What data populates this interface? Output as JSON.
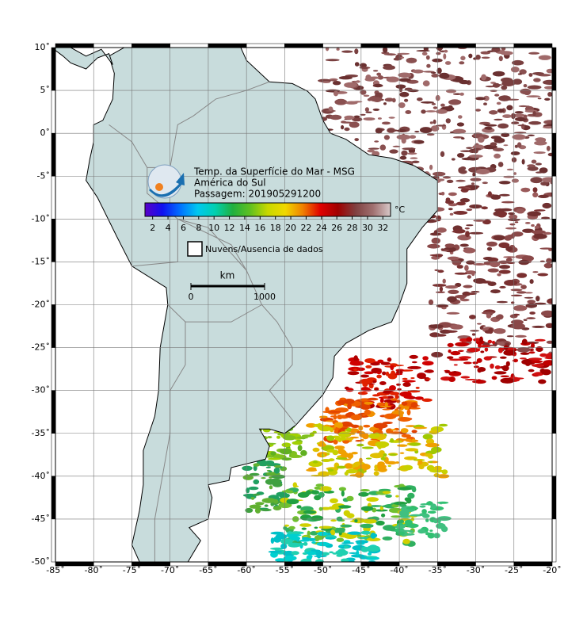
{
  "map": {
    "title_lines": [
      "Temp. da Superfície do Mar - MSG",
      "América do Sul",
      "Passagem: 201905291200"
    ],
    "xlim": [
      -85,
      -20
    ],
    "ylim": [
      -50,
      10
    ],
    "xticks": [
      {
        "value": -85,
        "label": "-85˚"
      },
      {
        "value": -80,
        "label": "-80˚"
      },
      {
        "value": -75,
        "label": "-75˚"
      },
      {
        "value": -70,
        "label": "-70˚"
      },
      {
        "value": -65,
        "label": "-65˚"
      },
      {
        "value": -60,
        "label": "-60˚"
      },
      {
        "value": -55,
        "label": "-55˚"
      },
      {
        "value": -50,
        "label": "-50˚"
      },
      {
        "value": -45,
        "label": "-45˚"
      },
      {
        "value": -40,
        "label": "-40˚"
      },
      {
        "value": -35,
        "label": "-35˚"
      },
      {
        "value": -30,
        "label": "-30˚"
      },
      {
        "value": -25,
        "label": "-25˚"
      },
      {
        "value": -20,
        "label": "-20˚"
      }
    ],
    "yticks": [
      {
        "value": 10,
        "label": "10˚"
      },
      {
        "value": 5,
        "label": "5˚"
      },
      {
        "value": 0,
        "label": "0˚"
      },
      {
        "value": -5,
        "label": "-5˚"
      },
      {
        "value": -10,
        "label": "-10˚"
      },
      {
        "value": -15,
        "label": "-15˚"
      },
      {
        "value": -20,
        "label": "-20˚"
      },
      {
        "value": -25,
        "label": "-25˚"
      },
      {
        "value": -30,
        "label": "-30˚"
      },
      {
        "value": -35,
        "label": "-35˚"
      },
      {
        "value": -40,
        "label": "-40˚"
      },
      {
        "value": -45,
        "label": "-45˚"
      },
      {
        "value": -50,
        "label": "-50˚"
      }
    ],
    "grid": true,
    "colorbar": {
      "range": [
        1,
        33
      ],
      "ticks": [
        2,
        4,
        6,
        8,
        10,
        12,
        14,
        16,
        18,
        20,
        22,
        24,
        26,
        28,
        30,
        32
      ],
      "unit": "°C",
      "colors": [
        "#5a00c8",
        "#1010f0",
        "#0070ff",
        "#00c8f0",
        "#00d0b0",
        "#20b040",
        "#60c020",
        "#c8d800",
        "#f0d800",
        "#f08000",
        "#e00000",
        "#a00000",
        "#804040",
        "#a07070",
        "#d8c8c8"
      ]
    },
    "legend": "Nuvens/Ausencia de dados",
    "scale": {
      "unit": "km",
      "ticks": [
        0,
        1000
      ]
    }
  }
}
